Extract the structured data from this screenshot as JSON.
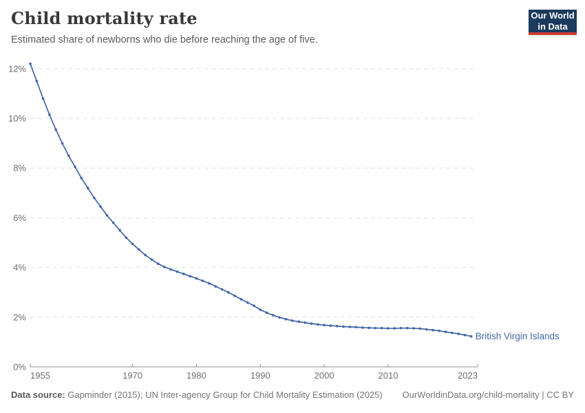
{
  "header": {
    "title": "Child mortality rate",
    "subtitle": "Estimated share of newborns who die before reaching the age of five."
  },
  "logo": {
    "line1": "Our World",
    "line2": "in Data",
    "bg_color": "#1b3a5c",
    "strip_color": "#d13d33"
  },
  "chart_data": {
    "type": "line",
    "title": "Child mortality rate",
    "xlabel": "",
    "ylabel": "",
    "xlim": [
      1954,
      2024
    ],
    "ylim": [
      0,
      12
    ],
    "grid": "horizontal-dashed",
    "legend_position": "end-of-line-label",
    "x_tick_labels": [
      "1955",
      "1970",
      "1980",
      "1990",
      "2000",
      "2010",
      "2023"
    ],
    "x_tick_years": [
      1955,
      1970,
      1980,
      1990,
      2000,
      2010,
      2023
    ],
    "y_ticks": [
      0,
      2,
      4,
      6,
      8,
      10,
      12
    ],
    "y_tick_suffix": "%",
    "series": [
      {
        "name": "British Virgin Islands",
        "color": "#4065a4",
        "x": [
          1954,
          1955,
          1956,
          1957,
          1958,
          1959,
          1960,
          1961,
          1962,
          1963,
          1964,
          1965,
          1966,
          1967,
          1968,
          1969,
          1970,
          1971,
          1972,
          1973,
          1974,
          1975,
          1976,
          1977,
          1978,
          1979,
          1980,
          1981,
          1982,
          1983,
          1984,
          1985,
          1986,
          1987,
          1988,
          1989,
          1990,
          1991,
          1992,
          1993,
          1994,
          1995,
          1996,
          1997,
          1998,
          1999,
          2000,
          2001,
          2002,
          2003,
          2004,
          2005,
          2006,
          2007,
          2008,
          2009,
          2010,
          2011,
          2012,
          2013,
          2014,
          2015,
          2016,
          2017,
          2018,
          2019,
          2020,
          2021,
          2022,
          2023
        ],
        "values": [
          12.2,
          11.5,
          10.8,
          10.15,
          9.55,
          9.0,
          8.5,
          8.05,
          7.6,
          7.2,
          6.8,
          6.45,
          6.1,
          5.8,
          5.5,
          5.2,
          4.95,
          4.72,
          4.5,
          4.32,
          4.15,
          4.02,
          3.92,
          3.83,
          3.74,
          3.65,
          3.56,
          3.46,
          3.36,
          3.24,
          3.12,
          3.0,
          2.86,
          2.72,
          2.59,
          2.46,
          2.3,
          2.18,
          2.08,
          1.99,
          1.92,
          1.86,
          1.82,
          1.78,
          1.74,
          1.71,
          1.68,
          1.66,
          1.64,
          1.62,
          1.61,
          1.6,
          1.58,
          1.57,
          1.56,
          1.56,
          1.55,
          1.55,
          1.56,
          1.56,
          1.55,
          1.54,
          1.51,
          1.48,
          1.45,
          1.41,
          1.37,
          1.33,
          1.28,
          1.23
        ]
      }
    ],
    "colors": {
      "gridline": "#dedede",
      "axis": "#8f8f8f",
      "tick_label": "#6e6e6e"
    }
  },
  "footer": {
    "source_label": "Data source:",
    "source_text": " Gapminder (2015); UN Inter-agency Group for Child Mortality Estimation (2025)",
    "url_text": "OurWorldinData.org/child-mortality | CC BY"
  }
}
